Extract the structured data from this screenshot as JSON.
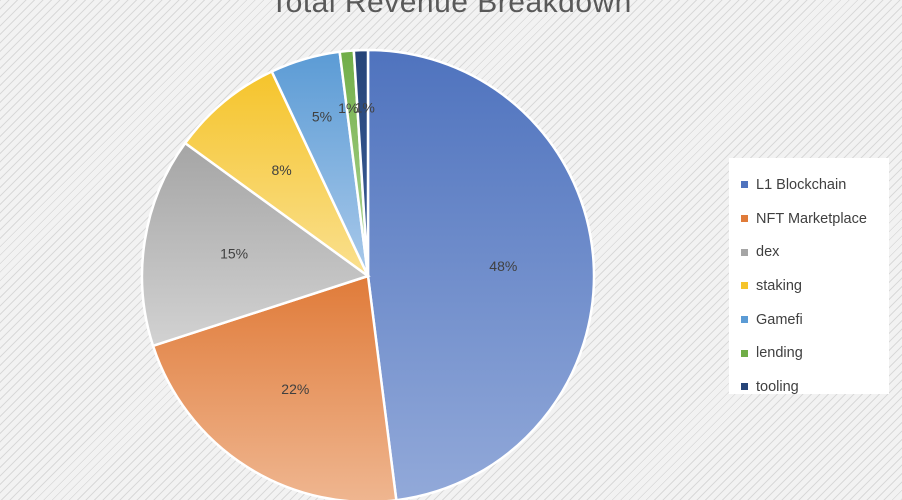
{
  "chart_data": {
    "type": "pie",
    "title": "Total Revenue Breakdown",
    "legend_position": "right",
    "slices": [
      {
        "name": "L1 Blockchain",
        "value": 48,
        "label": "48%",
        "color": "#4f73be",
        "color_light": "#92a9d9"
      },
      {
        "name": "NFT Marketplace",
        "value": 22,
        "label": "22%",
        "color": "#e07b39",
        "color_light": "#efb690"
      },
      {
        "name": "dex",
        "value": 15,
        "label": "15%",
        "color": "#a5a5a5",
        "color_light": "#d2d2d2"
      },
      {
        "name": "staking",
        "value": 8,
        "label": "8%",
        "color": "#f5c42b",
        "color_light": "#fae08f"
      },
      {
        "name": "Gamefi",
        "value": 5,
        "label": "5%",
        "color": "#5b9bd5",
        "color_light": "#a9c9ea"
      },
      {
        "name": "lending",
        "value": 1,
        "label": "1%",
        "color": "#70ad47",
        "color_light": "#b3d99a"
      },
      {
        "name": "tooling",
        "value": 1,
        "label": "1%",
        "color": "#264478",
        "color_light": "#3d5f99"
      }
    ]
  }
}
